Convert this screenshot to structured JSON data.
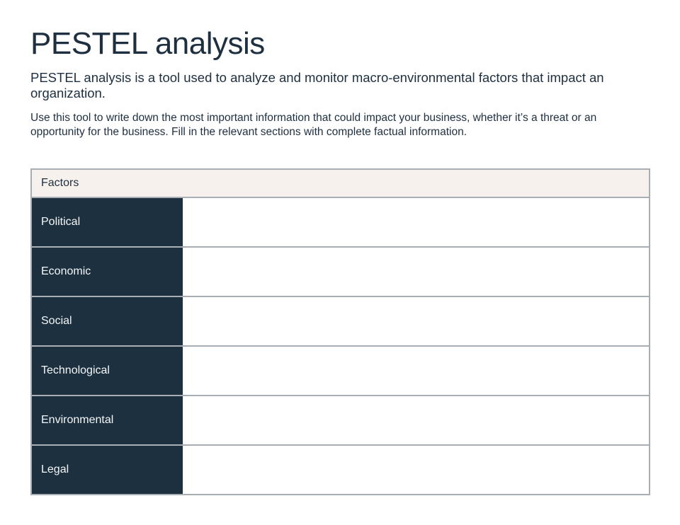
{
  "page": {
    "title": "PESTEL analysis",
    "intro": "PESTEL analysis is a tool used to analyze and monitor macro-environmental factors that impact an organization.",
    "instructions": "Use this tool to write down the most important information that could impact your business, whether it’s a threat or an opportunity for the business. Fill in the relevant sections with complete factual information."
  },
  "table": {
    "header": "Factors",
    "rows": [
      {
        "label": "Political",
        "value": ""
      },
      {
        "label": "Economic",
        "value": ""
      },
      {
        "label": "Social",
        "value": ""
      },
      {
        "label": "Technological",
        "value": ""
      },
      {
        "label": "Environmental",
        "value": ""
      },
      {
        "label": "Legal",
        "value": ""
      }
    ]
  },
  "colors": {
    "accent_navy": "#1c3040",
    "text_navy": "#1e2f40",
    "header_beige": "#f7f1ee",
    "border_gray": "#a8aeb4"
  }
}
